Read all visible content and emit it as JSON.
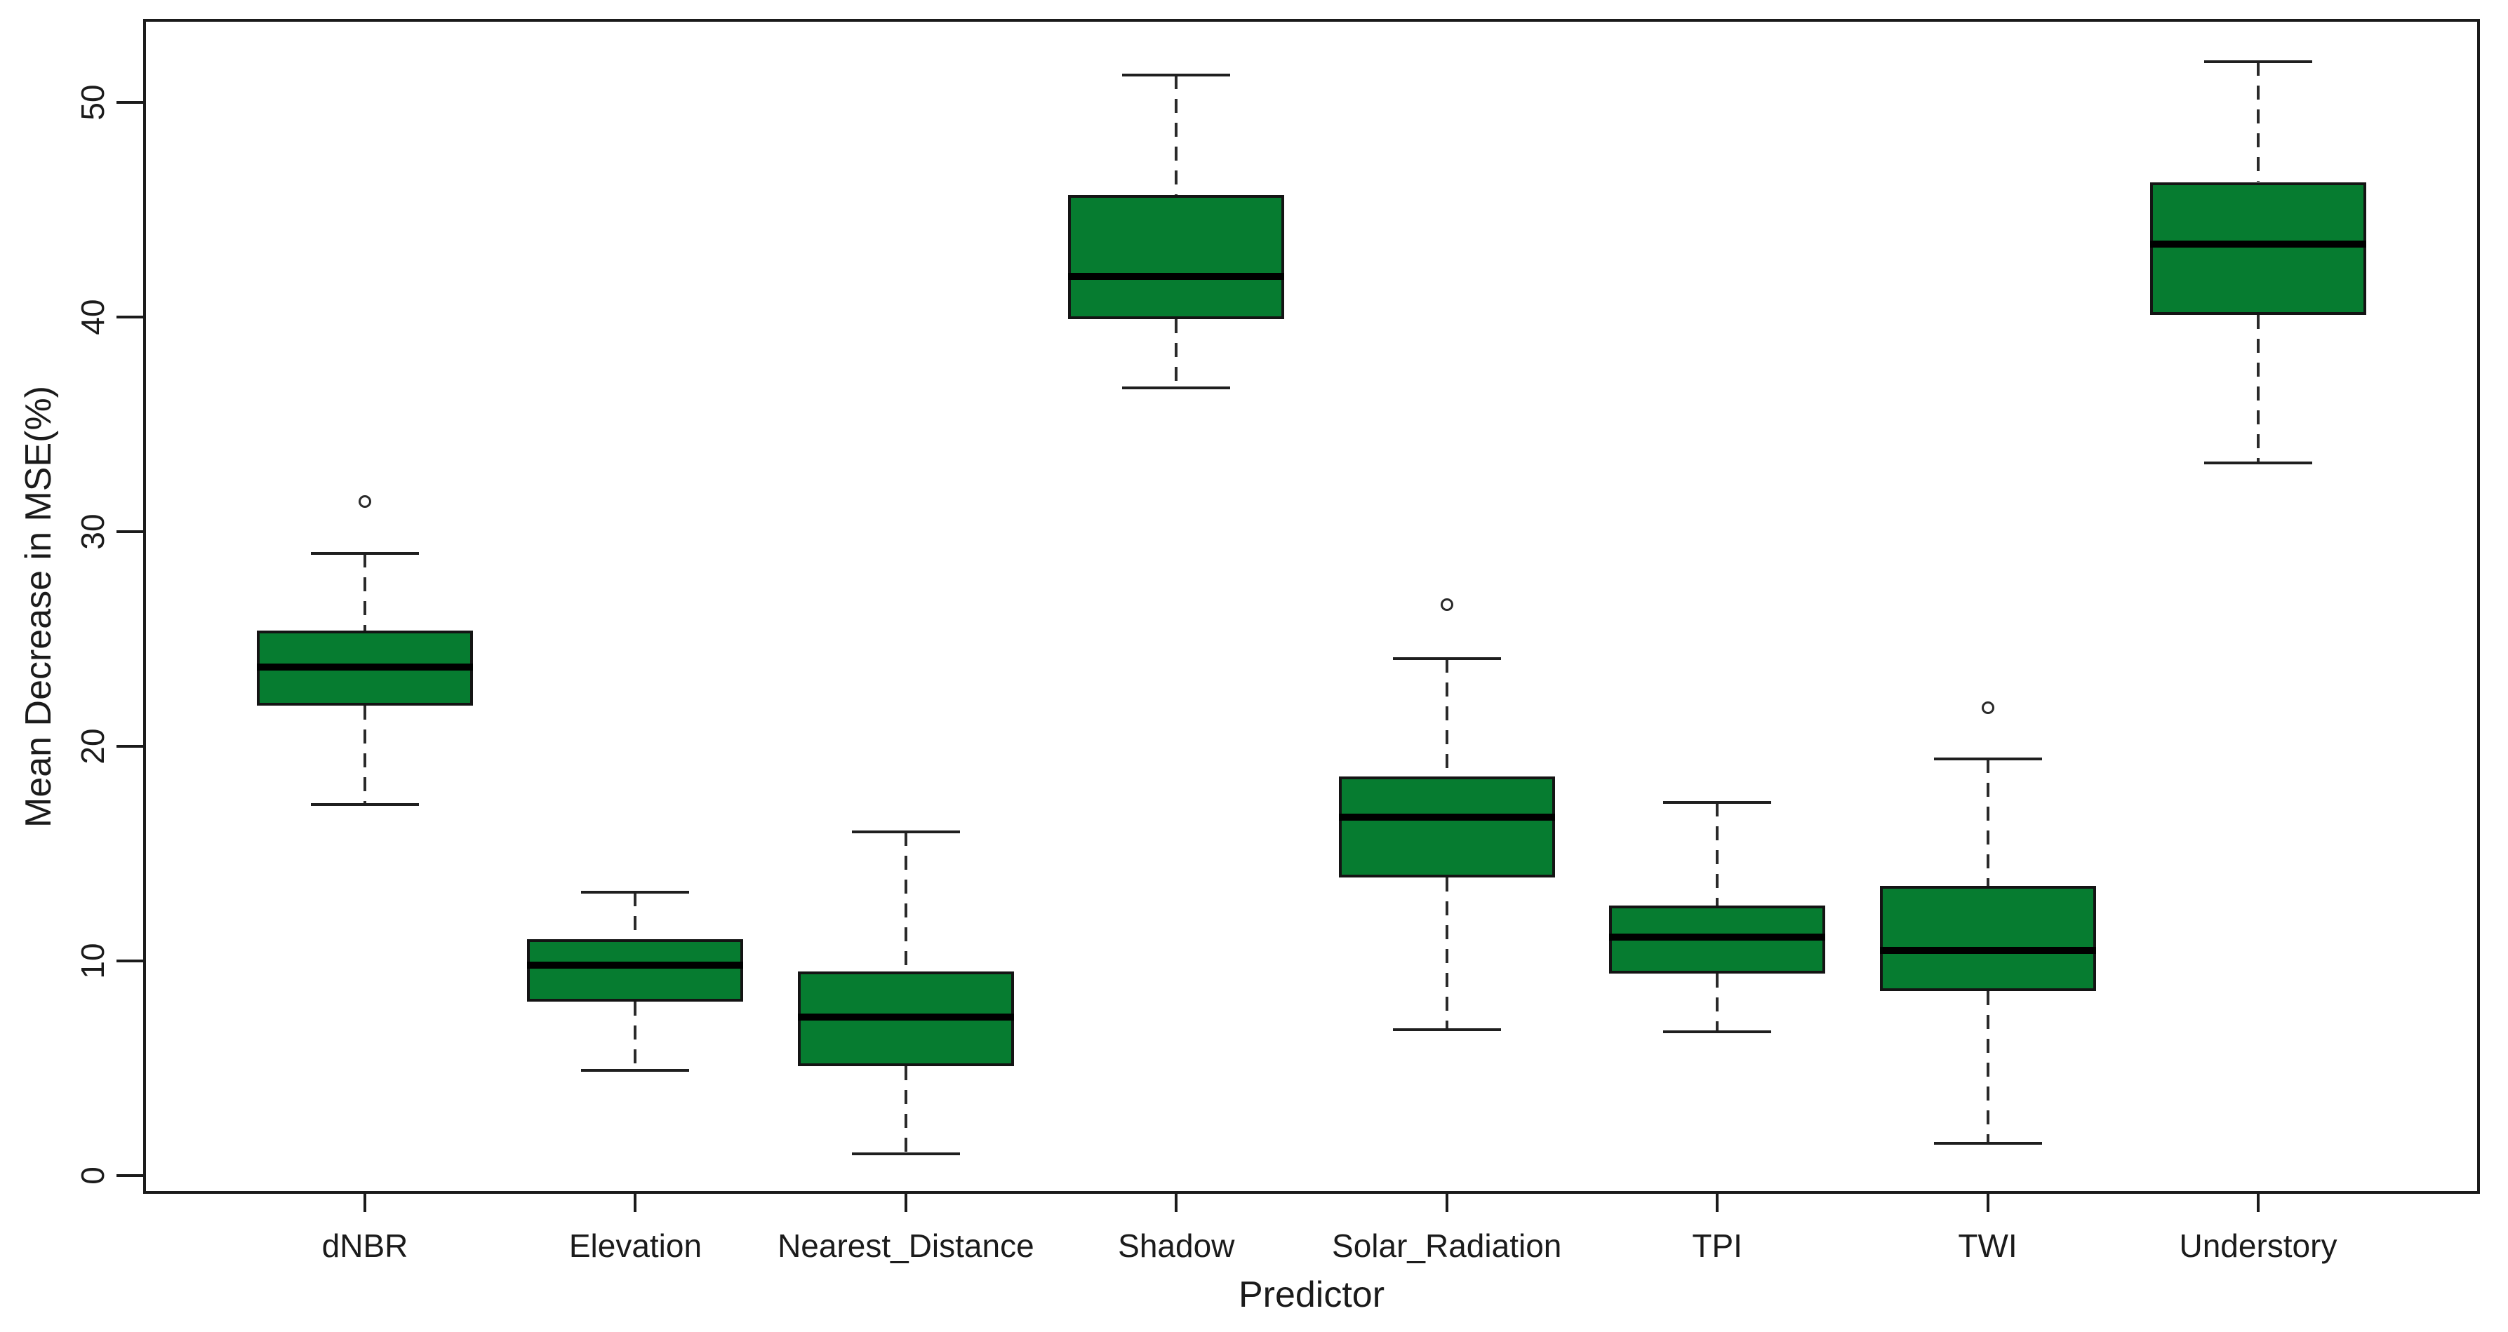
{
  "chart_data": {
    "type": "boxplot",
    "title": "",
    "xlabel": "Predictor",
    "ylabel": "Mean Decrease in MSE(%)",
    "y_ticks": [
      0,
      10,
      20,
      30,
      40,
      50
    ],
    "ylim": [
      -0.85,
      53.9
    ],
    "grid": false,
    "legend": "none",
    "box_fill_color": "#067C30",
    "line_color": "#1b1b1b",
    "categories": [
      "dNBR",
      "Elevation",
      "Nearest_Distance",
      "Shadow",
      "Solar_Radiation",
      "TPI",
      "TWI",
      "Understory"
    ],
    "series": [
      {
        "name": "dNBR",
        "low": 17.3,
        "q1": 21.9,
        "median": 23.7,
        "q3": 25.4,
        "high": 29.0,
        "outliers": [
          31.4
        ]
      },
      {
        "name": "Elevation",
        "low": 4.9,
        "q1": 8.1,
        "median": 9.8,
        "q3": 11.0,
        "high": 13.2,
        "outliers": []
      },
      {
        "name": "Nearest_Distance",
        "low": 1.0,
        "q1": 5.1,
        "median": 7.4,
        "q3": 9.5,
        "high": 16.0,
        "outliers": []
      },
      {
        "name": "Shadow",
        "low": 36.7,
        "q1": 39.9,
        "median": 41.9,
        "q3": 45.7,
        "high": 51.3,
        "outliers": []
      },
      {
        "name": "Solar_Radiation",
        "low": 6.8,
        "q1": 13.9,
        "median": 16.7,
        "q3": 18.6,
        "high": 24.1,
        "outliers": [
          26.6
        ]
      },
      {
        "name": "TPI",
        "low": 6.7,
        "q1": 9.4,
        "median": 11.1,
        "q3": 12.6,
        "high": 17.4,
        "outliers": []
      },
      {
        "name": "TWI",
        "low": 1.5,
        "q1": 8.6,
        "median": 10.5,
        "q3": 13.5,
        "high": 19.4,
        "outliers": [
          21.8
        ]
      },
      {
        "name": "Understory",
        "low": 33.2,
        "q1": 40.1,
        "median": 43.4,
        "q3": 46.3,
        "high": 51.9,
        "outliers": []
      }
    ]
  }
}
